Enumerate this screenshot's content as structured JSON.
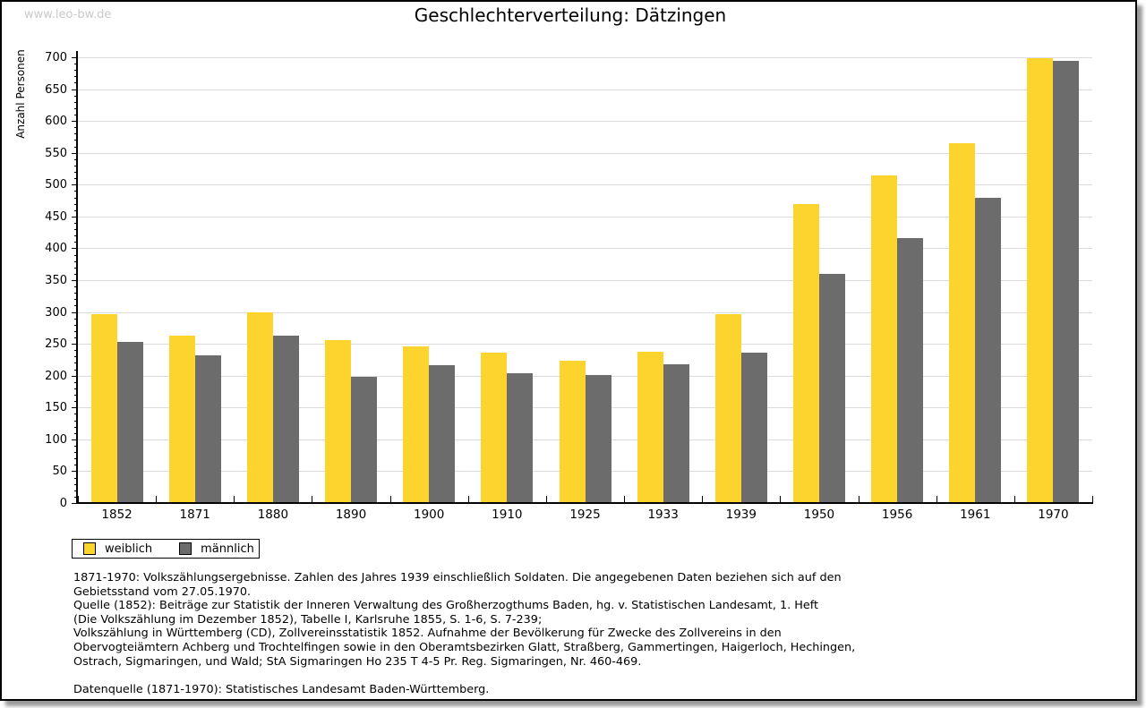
{
  "watermark": "www.leo-bw.de",
  "title": "Geschlechterverteilung: Dätzingen",
  "chart_data": {
    "type": "bar",
    "title": "Geschlechterverteilung: Dätzingen",
    "xlabel": "",
    "ylabel": "Anzahl Personen",
    "categories": [
      "1852",
      "1871",
      "1880",
      "1890",
      "1900",
      "1910",
      "1925",
      "1933",
      "1939",
      "1950",
      "1956",
      "1961",
      "1970"
    ],
    "series": [
      {
        "name": "weiblich",
        "color": "#FCD42D",
        "values": [
          297,
          263,
          300,
          256,
          246,
          236,
          224,
          238,
          297,
          469,
          514,
          565,
          698
        ]
      },
      {
        "name": "männlich",
        "color": "#6C6C6C",
        "values": [
          253,
          232,
          263,
          198,
          217,
          204,
          201,
          218,
          236,
          360,
          416,
          479,
          694
        ]
      }
    ],
    "ylim": [
      0,
      700
    ],
    "y_major_step": 50,
    "y_minor_step": 10,
    "grid": "horizontal",
    "gridline_color": "#dcdcdc",
    "legend_position": "bottom-left"
  },
  "legend": {
    "items": [
      {
        "label": "weiblich",
        "color": "#FCD42D"
      },
      {
        "label": "männlich",
        "color": "#6C6C6C"
      }
    ]
  },
  "footer": {
    "lines": [
      "1871-1970: Volkszählungsergebnisse. Zahlen des Jahres 1939 einschließlich Soldaten. Die angegebenen Daten beziehen sich auf den",
      "Gebietsstand vom 27.05.1970.",
      "Quelle (1852): Beiträge zur Statistik der Inneren Verwaltung des Großherzogthums Baden, hg. v. Statistischen Landesamt, 1. Heft",
      "(Die Volkszählung im Dezember 1852), Tabelle I, Karlsruhe 1855, S. 1-6, S. 7-239;",
      "Volkszählung in Württemberg (CD), Zollvereinsstatistik 1852. Aufnahme der Bevölkerung für Zwecke des Zollvereins in den",
      "Obervogteiämtern Achberg und Trochtelfingen sowie in den Oberamtsbezirken Glatt, Straßberg, Gammertingen, Haigerloch, Hechingen,",
      "Ostrach, Sigmaringen, und Wald; StA Sigmaringen Ho 235 T 4-5 Pr. Reg. Sigmaringen, Nr. 460-469."
    ],
    "datenquelle": "Datenquelle (1871-1970): Statistisches Landesamt Baden-Württemberg."
  },
  "colors": {
    "weiblich": "#FCD42D",
    "männlich": "#6C6C6C",
    "gridline": "#dcdcdc",
    "axis": "#000000",
    "watermark": "#c9c9c9",
    "frame_shadow": "#9a9a9a"
  }
}
